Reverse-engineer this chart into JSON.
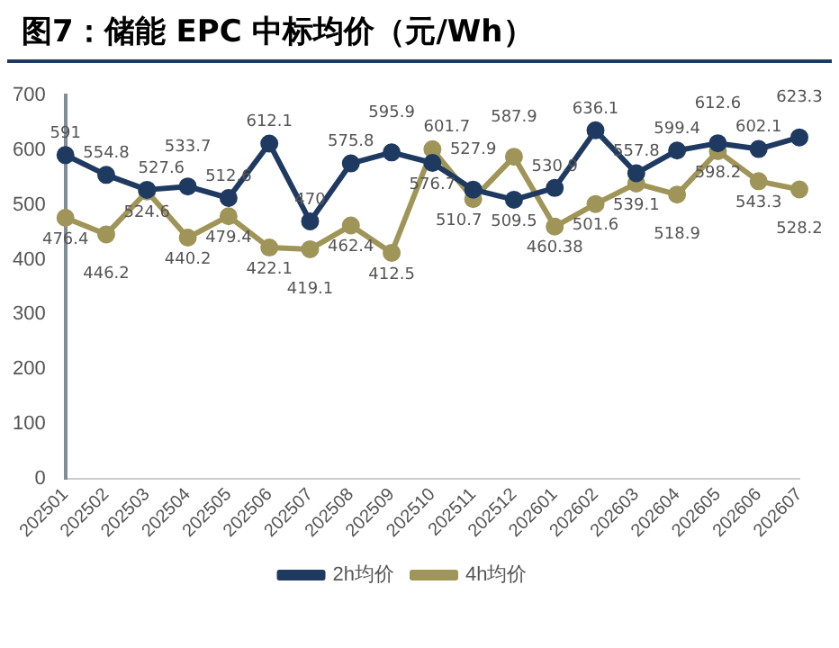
{
  "chart_data": {
    "type": "line",
    "title": "图7：储能 EPC 中标均价（元/Wh）",
    "categories": [
      "202501",
      "202502",
      "202503",
      "202504",
      "202505",
      "202506",
      "202507",
      "202508",
      "202509",
      "202510",
      "202511",
      "202512",
      "202601",
      "202602",
      "202603",
      "202604",
      "202605",
      "202606",
      "202607"
    ],
    "series": [
      {
        "name": "2h均价",
        "color": "#1f3a60",
        "values": [
          591,
          554.8,
          527.6,
          533.7,
          512.6,
          612.1,
          470,
          575.8,
          595.9,
          576.7,
          527.9,
          509.5,
          530.9,
          636.1,
          557.8,
          599.4,
          612.6,
          602.1,
          623.3
        ]
      },
      {
        "name": "4h均价",
        "color": "#a09558",
        "values": [
          476.4,
          446.2,
          524.6,
          440.2,
          479.4,
          422.1,
          419.1,
          462.4,
          412.5,
          601.7,
          510.7,
          587.9,
          460.38,
          501.6,
          539.1,
          518.9,
          598.2,
          543.3,
          528.2
        ]
      }
    ],
    "ylim": [
      0,
      700
    ],
    "yticks": [
      0,
      100,
      200,
      300,
      400,
      500,
      600,
      700
    ],
    "grid": false,
    "legend": "bottom",
    "marker": "circle",
    "line_style": "solid",
    "data_labels": true
  }
}
